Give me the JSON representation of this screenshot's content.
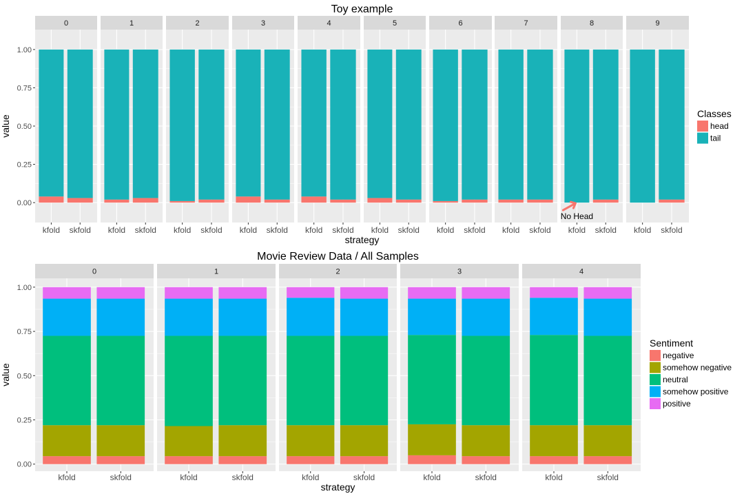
{
  "chart_data": [
    {
      "type": "bar",
      "stacked": true,
      "title": "Toy example",
      "xlabel": "strategy",
      "ylabel": "value",
      "ylim": [
        -0.13,
        1.13
      ],
      "yticks": [
        "0.00",
        "0.25",
        "0.50",
        "0.75",
        "1.00"
      ],
      "facets": [
        "0",
        "1",
        "2",
        "3",
        "4",
        "5",
        "6",
        "7",
        "8",
        "9"
      ],
      "categories": [
        "kfold",
        "skfold"
      ],
      "legend_title": "Classes",
      "legend_position": "right",
      "series": [
        {
          "name": "head",
          "color": "#F8766D",
          "values": [
            [
              0.04,
              0.03
            ],
            [
              0.02,
              0.03
            ],
            [
              0.01,
              0.02
            ],
            [
              0.04,
              0.02
            ],
            [
              0.04,
              0.02
            ],
            [
              0.03,
              0.02
            ],
            [
              0.01,
              0.02
            ],
            [
              0.02,
              0.02
            ],
            [
              0.0,
              0.02
            ],
            [
              0.0,
              0.02
            ]
          ]
        },
        {
          "name": "tail",
          "color": "#19B2B8",
          "values": [
            [
              0.96,
              0.97
            ],
            [
              0.98,
              0.97
            ],
            [
              0.99,
              0.98
            ],
            [
              0.96,
              0.98
            ],
            [
              0.96,
              0.98
            ],
            [
              0.97,
              0.98
            ],
            [
              0.99,
              0.98
            ],
            [
              0.98,
              0.98
            ],
            [
              1.0,
              0.98
            ],
            [
              1.0,
              0.98
            ]
          ]
        }
      ],
      "annotation": {
        "text": "No Head",
        "facet": "8",
        "category": "kfold",
        "color": "#F8766D"
      }
    },
    {
      "type": "bar",
      "stacked": true,
      "title": "Movie Review Data / All Samples",
      "xlabel": "strategy",
      "ylabel": "value",
      "ylim": [
        -0.04,
        1.05
      ],
      "yticks": [
        "0.00",
        "0.25",
        "0.50",
        "0.75",
        "1.00"
      ],
      "facets": [
        "0",
        "1",
        "2",
        "3",
        "4"
      ],
      "categories": [
        "kfold",
        "skfold"
      ],
      "legend_title": "Sentiment",
      "legend_position": "right",
      "series": [
        {
          "name": "negative",
          "color": "#F8766D",
          "values": [
            [
              0.045,
              0.045
            ],
            [
              0.045,
              0.045
            ],
            [
              0.045,
              0.045
            ],
            [
              0.05,
              0.045
            ],
            [
              0.045,
              0.045
            ]
          ]
        },
        {
          "name": "somehow negative",
          "color": "#A3A500",
          "values": [
            [
              0.175,
              0.175
            ],
            [
              0.17,
              0.175
            ],
            [
              0.175,
              0.175
            ],
            [
              0.175,
              0.175
            ],
            [
              0.175,
              0.175
            ]
          ]
        },
        {
          "name": "neutral",
          "color": "#00BF7D",
          "values": [
            [
              0.505,
              0.505
            ],
            [
              0.51,
              0.505
            ],
            [
              0.505,
              0.505
            ],
            [
              0.505,
              0.505
            ],
            [
              0.51,
              0.505
            ]
          ]
        },
        {
          "name": "somehow positive",
          "color": "#00B0F6",
          "values": [
            [
              0.21,
              0.21
            ],
            [
              0.21,
              0.21
            ],
            [
              0.215,
              0.21
            ],
            [
              0.205,
              0.21
            ],
            [
              0.21,
              0.21
            ]
          ]
        },
        {
          "name": "positive",
          "color": "#E76BF3",
          "values": [
            [
              0.065,
              0.065
            ],
            [
              0.065,
              0.065
            ],
            [
              0.06,
              0.065
            ],
            [
              0.065,
              0.065
            ],
            [
              0.06,
              0.065
            ]
          ]
        }
      ]
    }
  ]
}
